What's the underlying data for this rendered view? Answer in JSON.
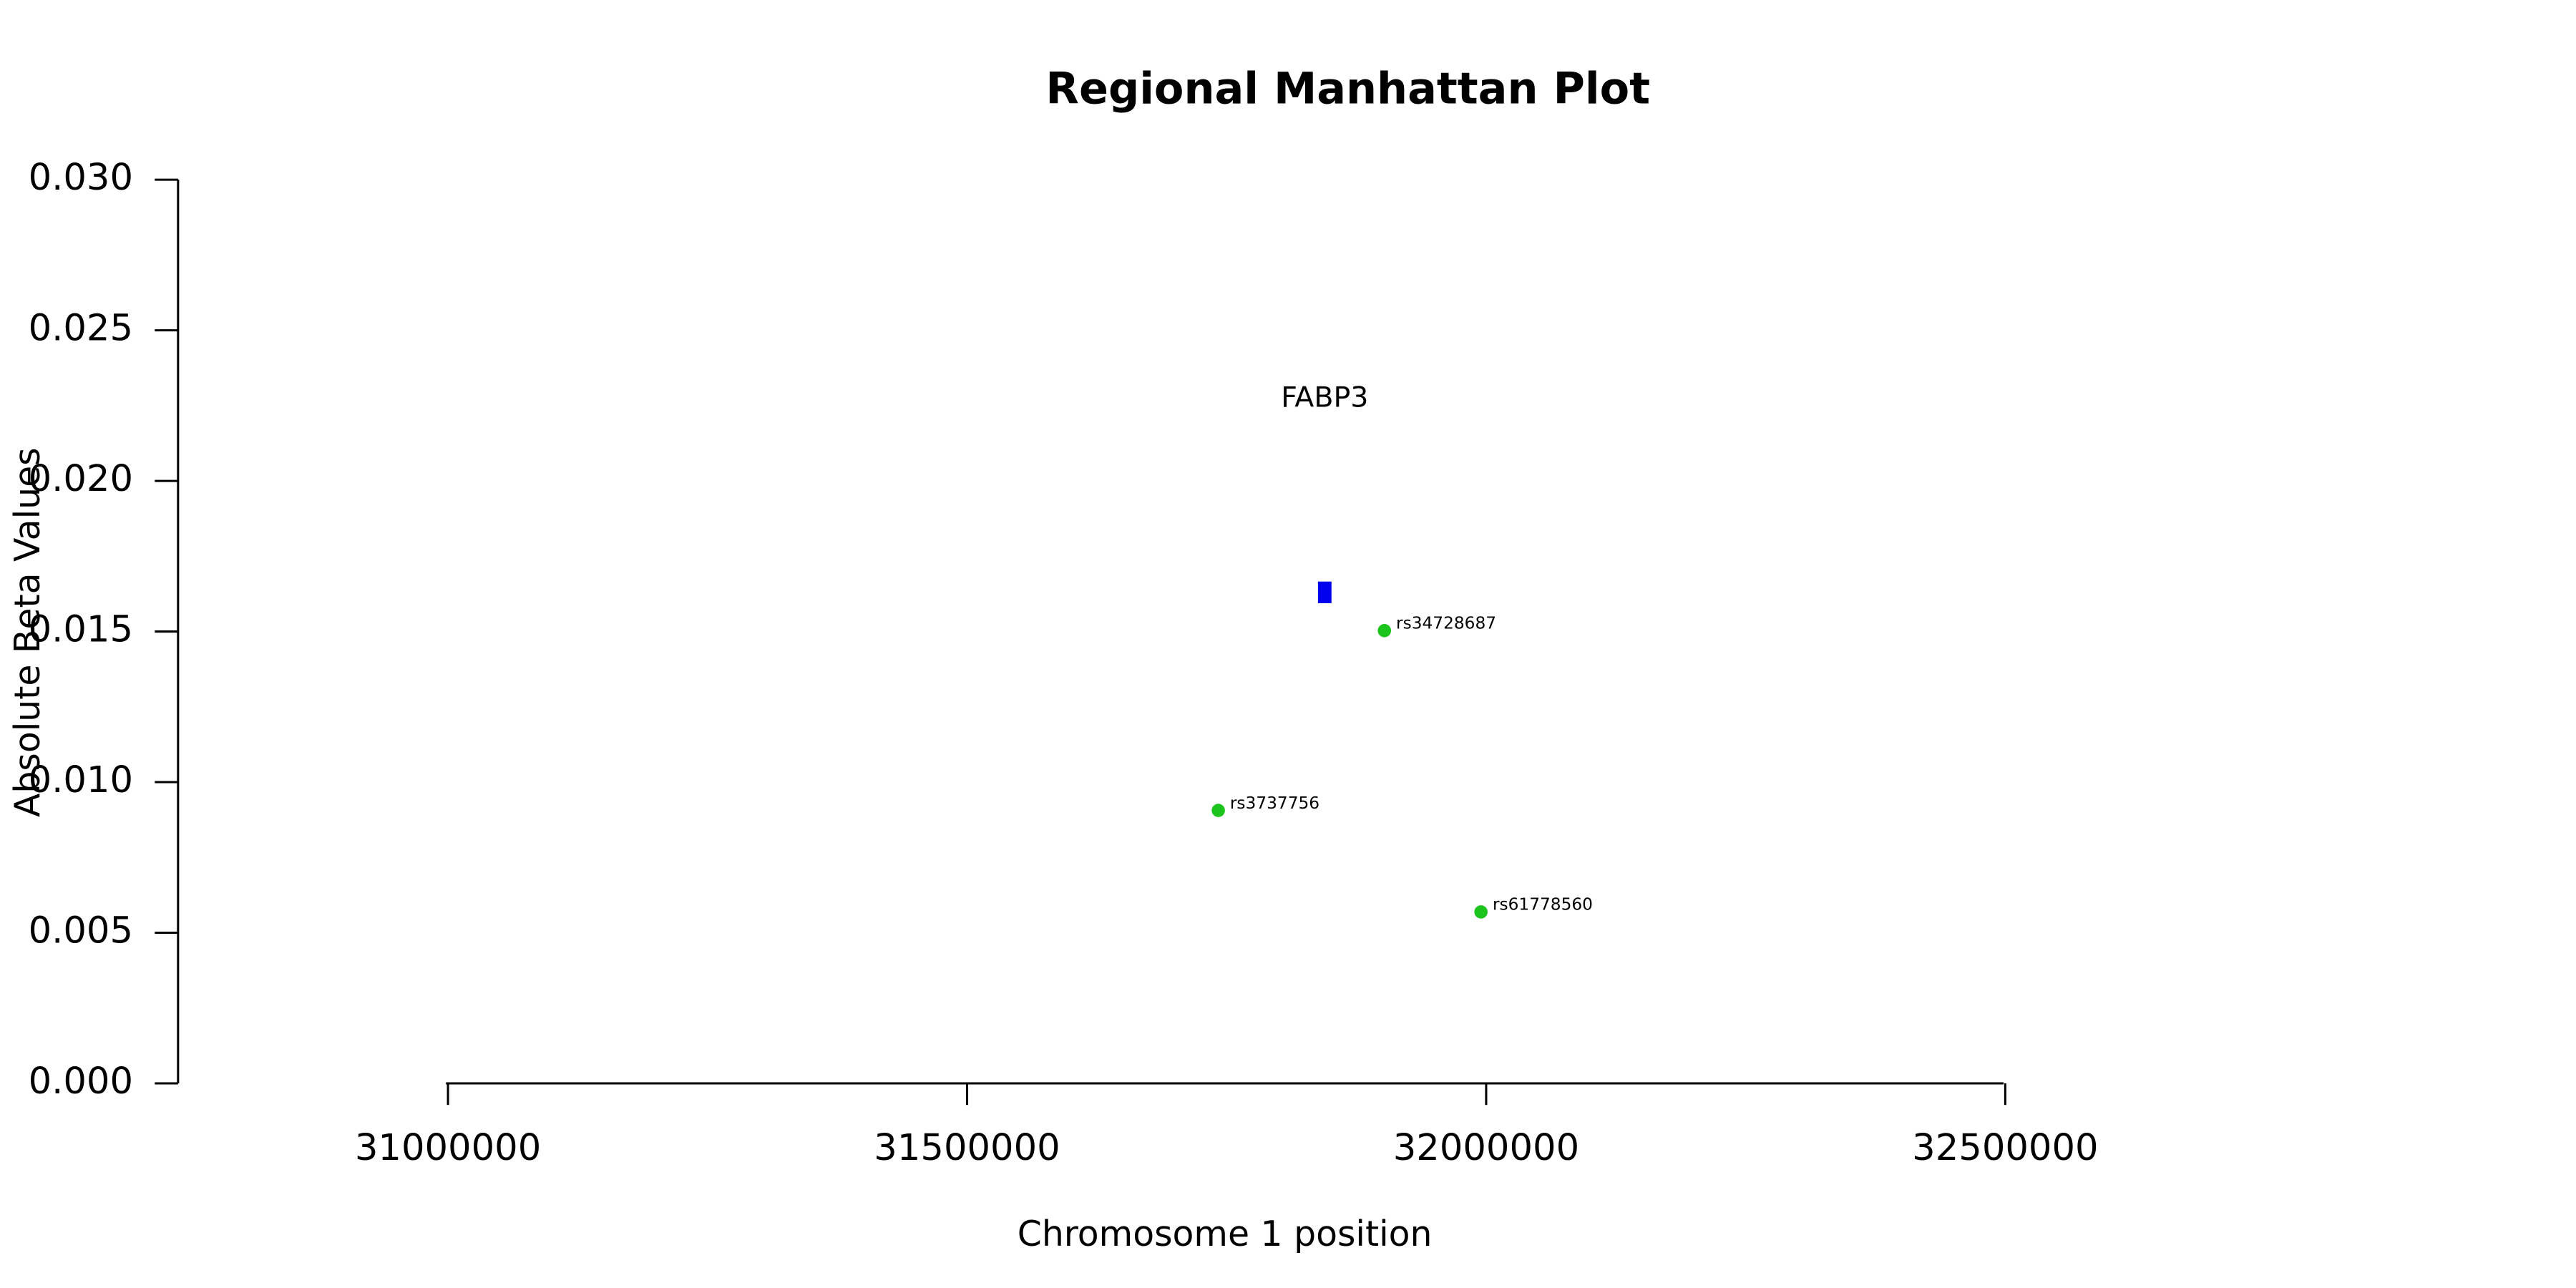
{
  "chart_data": {
    "type": "scatter",
    "title": "Regional Manhattan Plot",
    "xlabel": "Chromosome 1 position",
    "ylabel": "Absolute Beta Values",
    "xlim": [
      30740000,
      32960000
    ],
    "ylim": [
      0,
      0.03
    ],
    "xticks": [
      31000000,
      31500000,
      32000000,
      32500000
    ],
    "yticks": [
      {
        "value": 0,
        "label": "0.000"
      },
      {
        "value": 0.005,
        "label": "0.005"
      },
      {
        "value": 0.01,
        "label": "0.010"
      },
      {
        "value": 0.015,
        "label": "0.015"
      },
      {
        "value": 0.02,
        "label": "0.020"
      },
      {
        "value": 0.025,
        "label": "0.025"
      },
      {
        "value": 0.03,
        "label": "0.030"
      }
    ],
    "points": {
      "color": "#1ec41e",
      "x": [
        31742000,
        31902000,
        31995000
      ],
      "values": [
        0.00906,
        0.01503,
        0.00569
      ],
      "labels": [
        "rs3737756",
        "rs34728687",
        "rs61778560"
      ]
    },
    "genes": [
      {
        "label": "FABP3",
        "start": 31838000,
        "end": 31851000,
        "value": 0.0163,
        "color": "#0000ee"
      }
    ]
  }
}
